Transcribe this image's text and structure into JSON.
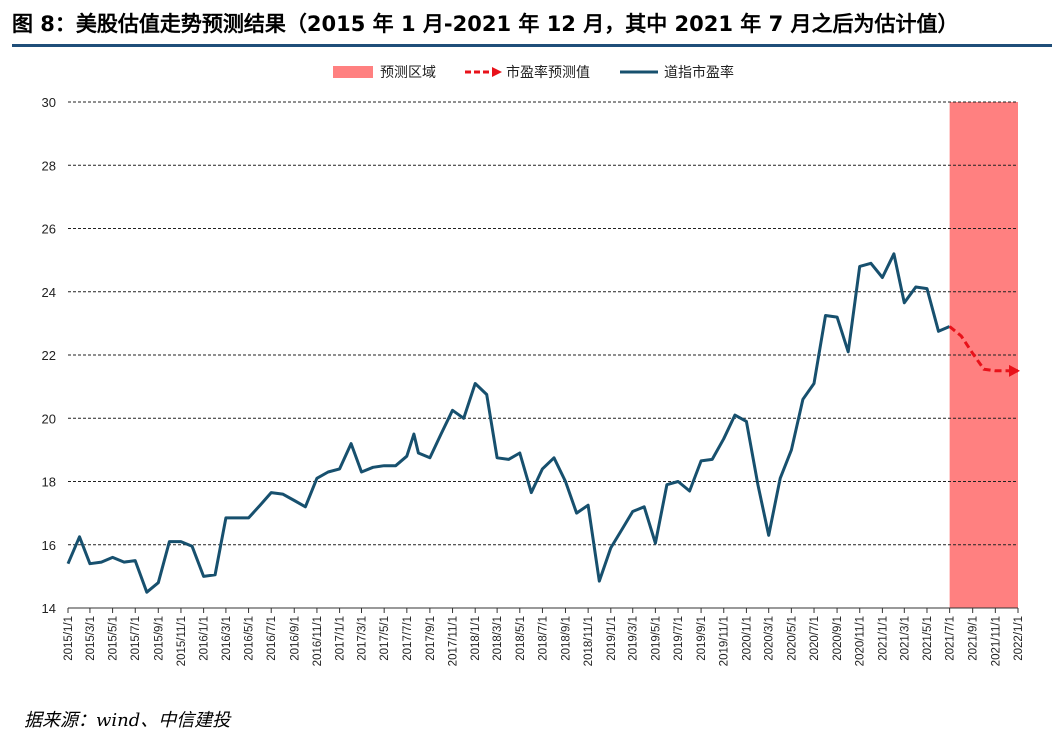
{
  "title": "图 8：美股估值走势预测结果（2015 年 1 月-2021 年 12 月，其中 2021 年 7 月之后为估计值）",
  "source": "据来源：wind、中信建投",
  "colors": {
    "actual": "#17506e",
    "forecast": "#e8121a",
    "region": "#ff8080",
    "rule": "#1f4e79"
  },
  "chart_data": {
    "type": "line",
    "ylim": [
      14,
      30
    ],
    "yticks": [
      14,
      16,
      18,
      20,
      22,
      24,
      26,
      28,
      30
    ],
    "grid": "horizontal dashed",
    "legend": {
      "placement": "top-center",
      "entries": [
        "预测区域",
        "市盈率预测值",
        "道指市盈率"
      ]
    },
    "x_range": [
      "2015/1/1",
      "2022/1/1"
    ],
    "x_ticks": [
      "2015/1/1",
      "2015/3/1",
      "2015/5/1",
      "2015/7/1",
      "2015/9/1",
      "2015/11/1",
      "2016/1/1",
      "2016/3/1",
      "2016/5/1",
      "2016/7/1",
      "2016/9/1",
      "2016/11/1",
      "2017/1/1",
      "2017/3/1",
      "2017/5/1",
      "2017/7/1",
      "2017/9/1",
      "2017/11/1",
      "2018/1/1",
      "2018/3/1",
      "2018/5/1",
      "2018/7/1",
      "2018/9/1",
      "2018/11/1",
      "2019/1/1",
      "2019/3/1",
      "2019/5/1",
      "2019/7/1",
      "2019/9/1",
      "2019/11/1",
      "2020/1/1",
      "2020/3/1",
      "2020/5/1",
      "2020/7/1",
      "2020/9/1",
      "2020/11/1",
      "2021/1/1",
      "2021/3/1",
      "2021/5/1",
      "2021/7/1",
      "2021/9/1",
      "2021/11/1",
      "2022/1/1"
    ],
    "forecast_region": {
      "name": "预测区域",
      "from": "2021/7/1",
      "to": "2022/1/1"
    },
    "series": [
      {
        "name": "道指市盈率",
        "style": "solid",
        "points": [
          [
            "2015/1/1",
            15.4
          ],
          [
            "2015/2/1",
            16.25
          ],
          [
            "2015/3/1",
            15.4
          ],
          [
            "2015/4/1",
            15.45
          ],
          [
            "2015/5/1",
            15.6
          ],
          [
            "2015/6/1",
            15.45
          ],
          [
            "2015/7/1",
            15.5
          ],
          [
            "2015/8/1",
            14.5
          ],
          [
            "2015/9/1",
            14.8
          ],
          [
            "2015/10/1",
            16.1
          ],
          [
            "2015/11/1",
            16.1
          ],
          [
            "2015/12/1",
            15.95
          ],
          [
            "2016/1/1",
            15.0
          ],
          [
            "2016/2/1",
            15.05
          ],
          [
            "2016/3/1",
            16.85
          ],
          [
            "2016/4/1",
            16.85
          ],
          [
            "2016/5/1",
            16.85
          ],
          [
            "2016/6/1",
            17.25
          ],
          [
            "2016/7/1",
            17.65
          ],
          [
            "2016/8/1",
            17.6
          ],
          [
            "2016/9/1",
            17.4
          ],
          [
            "2016/10/1",
            17.2
          ],
          [
            "2016/11/1",
            18.1
          ],
          [
            "2016/12/1",
            18.3
          ],
          [
            "2017/1/1",
            18.4
          ],
          [
            "2017/2/1",
            19.2
          ],
          [
            "2017/3/1",
            18.3
          ],
          [
            "2017/4/1",
            18.45
          ],
          [
            "2017/5/1",
            18.5
          ],
          [
            "2017/6/1",
            18.5
          ],
          [
            "2017/7/1",
            18.8
          ],
          [
            "2017/7/20",
            19.5
          ],
          [
            "2017/8/1",
            18.9
          ],
          [
            "2017/9/1",
            18.75
          ],
          [
            "2017/10/1",
            19.5
          ],
          [
            "2017/11/1",
            20.25
          ],
          [
            "2017/12/1",
            20.0
          ],
          [
            "2018/1/1",
            21.1
          ],
          [
            "2018/2/1",
            20.75
          ],
          [
            "2018/3/1",
            18.75
          ],
          [
            "2018/4/1",
            18.7
          ],
          [
            "2018/5/1",
            18.9
          ],
          [
            "2018/6/1",
            17.65
          ],
          [
            "2018/7/1",
            18.4
          ],
          [
            "2018/8/1",
            18.75
          ],
          [
            "2018/9/1",
            18.0
          ],
          [
            "2018/10/1",
            17.0
          ],
          [
            "2018/11/1",
            17.25
          ],
          [
            "2018/12/1",
            14.85
          ],
          [
            "2019/1/1",
            15.9
          ],
          [
            "2019/2/1",
            16.5
          ],
          [
            "2019/3/1",
            17.05
          ],
          [
            "2019/4/1",
            17.2
          ],
          [
            "2019/5/1",
            16.05
          ],
          [
            "2019/6/1",
            17.9
          ],
          [
            "2019/7/1",
            18.0
          ],
          [
            "2019/8/1",
            17.7
          ],
          [
            "2019/9/1",
            18.65
          ],
          [
            "2019/10/1",
            18.7
          ],
          [
            "2019/11/1",
            19.35
          ],
          [
            "2019/12/1",
            20.1
          ],
          [
            "2020/1/1",
            19.9
          ],
          [
            "2020/2/1",
            17.9
          ],
          [
            "2020/3/1",
            16.3
          ],
          [
            "2020/4/1",
            18.1
          ],
          [
            "2020/5/1",
            19.0
          ],
          [
            "2020/6/1",
            20.6
          ],
          [
            "2020/7/1",
            21.1
          ],
          [
            "2020/8/1",
            23.25
          ],
          [
            "2020/9/1",
            23.2
          ],
          [
            "2020/10/1",
            22.1
          ],
          [
            "2020/11/1",
            24.8
          ],
          [
            "2020/12/1",
            24.9
          ],
          [
            "2021/1/1",
            24.45
          ],
          [
            "2021/2/1",
            25.2
          ],
          [
            "2021/3/1",
            23.65
          ],
          [
            "2021/4/1",
            24.15
          ],
          [
            "2021/5/1",
            24.1
          ],
          [
            "2021/6/1",
            22.75
          ],
          [
            "2021/7/1",
            22.9
          ]
        ]
      },
      {
        "name": "市盈率预测值",
        "style": "dashed",
        "points": [
          [
            "2021/7/1",
            22.9
          ],
          [
            "2021/8/1",
            22.6
          ],
          [
            "2021/9/1",
            22.05
          ],
          [
            "2021/10/1",
            21.55
          ],
          [
            "2021/11/1",
            21.5
          ],
          [
            "2021/12/1",
            21.5
          ],
          [
            "2022/1/1",
            21.5
          ]
        ]
      }
    ]
  }
}
